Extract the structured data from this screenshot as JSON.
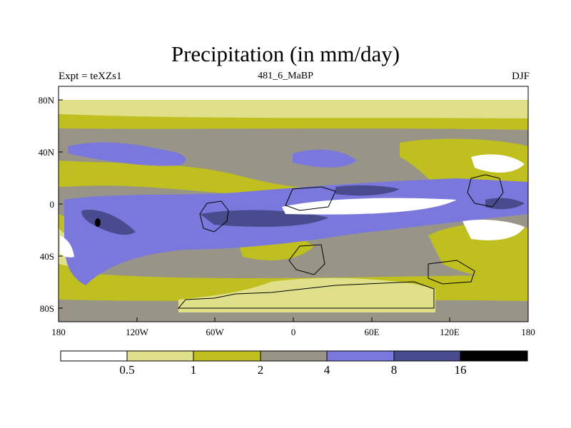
{
  "header": {
    "title": "Precipitation (in mm/day)",
    "experiment": "Expt = teXZs1",
    "period": "481_6_MaBP",
    "season": "DJF"
  },
  "axes": {
    "x_ticks": [
      "180",
      "120W",
      "60W",
      "0",
      "60E",
      "120E",
      "180"
    ],
    "y_ticks": [
      "80N",
      "40N",
      "0",
      "40S",
      "80S"
    ]
  },
  "colorbar": {
    "bins": [
      {
        "range": "< 0.5",
        "color": "#ffffff"
      },
      {
        "range": "0.5-1",
        "color": "#e0e08a"
      },
      {
        "range": "1-2",
        "color": "#bfbf1f"
      },
      {
        "range": "2-4",
        "color": "#999488"
      },
      {
        "range": "4-8",
        "color": "#7a78dc"
      },
      {
        "range": "8-16",
        "color": "#4a4a8e"
      },
      {
        "range": "> 16",
        "color": "#000000"
      }
    ],
    "labels": [
      "0.5",
      "1",
      "2",
      "4",
      "8",
      "16"
    ]
  },
  "colors": {
    "lt05": "#ffffff",
    "c05_1": "#e0e08a",
    "c1_2": "#bfbf1f",
    "c2_4": "#999488",
    "c4_8": "#7a78dc",
    "c8_16": "#4a4a8e",
    "gt16": "#000000"
  }
}
